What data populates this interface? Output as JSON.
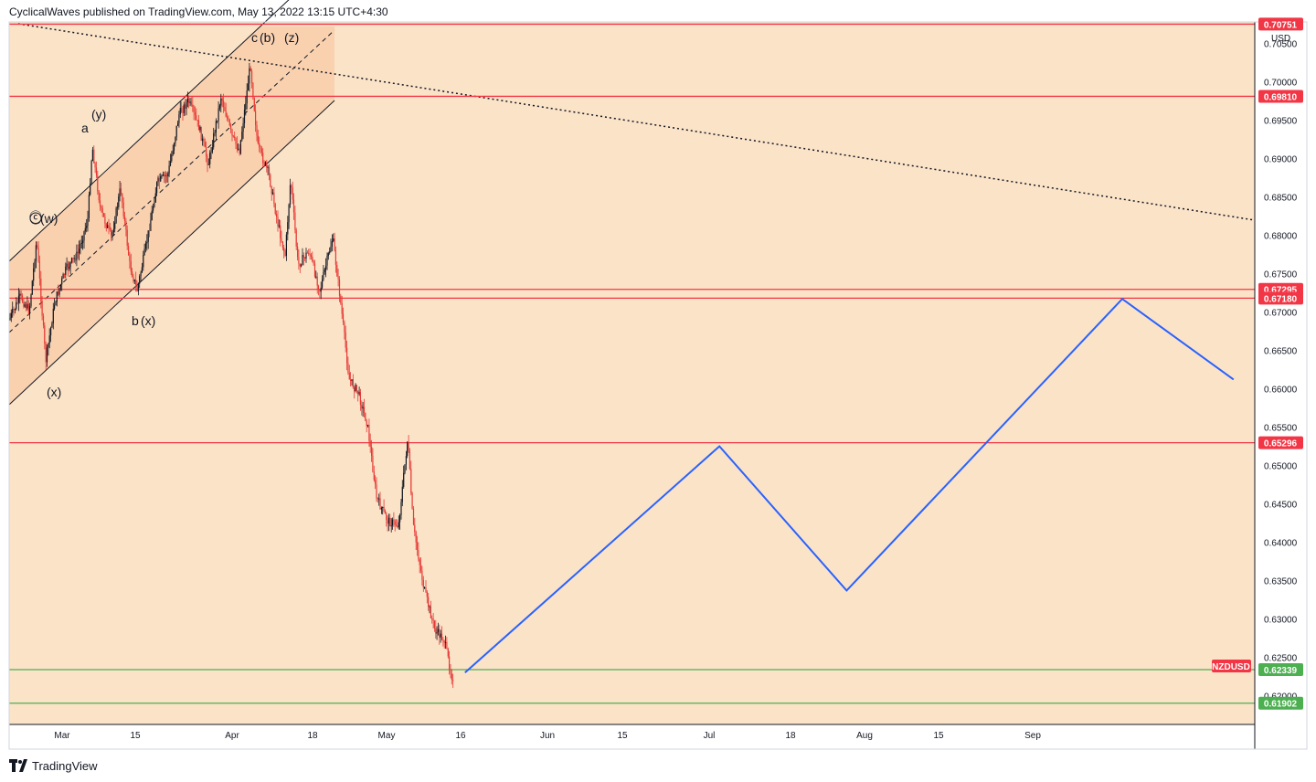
{
  "header": {
    "published_text": "CyclicalWaves published on TradingView.com, May 13, 2022 13:15 UTC+4:30"
  },
  "footer": {
    "brand": "TradingView"
  },
  "chart_data": {
    "type": "candlestick",
    "symbol": "NZDUSD",
    "currency": "USD",
    "x_labels": [
      "Mar",
      "15",
      "Apr",
      "18",
      "May",
      "16",
      "Jun",
      "15",
      "Jul",
      "18",
      "Aug",
      "15",
      "Sep"
    ],
    "y_ticks": [
      "0.70500",
      "0.70000",
      "0.69500",
      "0.69000",
      "0.68500",
      "0.68000",
      "0.67500",
      "0.67000",
      "0.66500",
      "0.66000",
      "0.65500",
      "0.65000",
      "0.64500",
      "0.64000",
      "0.63500",
      "0.63000",
      "0.62500",
      "0.62000"
    ],
    "ylim": [
      0.6182,
      0.708
    ],
    "horizontal_levels": [
      {
        "label": "0.70751",
        "value": 0.70751,
        "color": "#f23645"
      },
      {
        "label": "0.69810",
        "value": 0.6981,
        "color": "#f23645"
      },
      {
        "label": "0.67295",
        "value": 0.67295,
        "color": "#f23645"
      },
      {
        "label": "0.67180",
        "value": 0.6718,
        "color": "#f23645"
      },
      {
        "label": "0.65296",
        "value": 0.65296,
        "color": "#f23645"
      },
      {
        "label": "0.62339",
        "value": 0.62339,
        "color": "#4caf50"
      },
      {
        "label": "0.61902",
        "value": 0.61902,
        "color": "#4caf50"
      }
    ],
    "price_tag": "NZDUSD",
    "projection_path": [
      {
        "date": "2022-05-16",
        "price": 0.623
      },
      {
        "date": "2022-07-03",
        "price": 0.6525
      },
      {
        "date": "2022-07-27",
        "price": 0.6337
      },
      {
        "date": "2022-09-17",
        "price": 0.6717
      },
      {
        "date": "2022-10-08",
        "price": 0.6612
      }
    ],
    "wave_labels": [
      "ⓒ",
      "(w)",
      "a",
      "(y)",
      "b",
      "(x)",
      "(x)",
      "c",
      "(b)",
      "(z)"
    ],
    "colors": {
      "background": "#fbe3c8",
      "channel_fill": "#f8ceaa",
      "candle_bull": "#131722",
      "candle_bear": "#e53935",
      "projection": "#2962ff",
      "trendline": "#131722"
    }
  }
}
